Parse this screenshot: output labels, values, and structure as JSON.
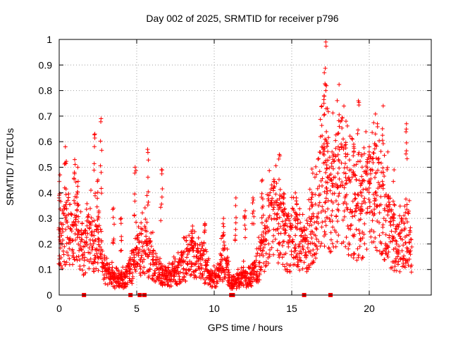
{
  "chart_data": {
    "type": "scatter",
    "title": "Day 002 of 2025, SRMTID for receiver p796",
    "xlabel": "GPS time / hours",
    "ylabel": "SRMTID / TECUs",
    "xlim": [
      0,
      24
    ],
    "ylim": [
      0,
      1
    ],
    "xticks": [
      "0",
      "5",
      "10",
      "15",
      "20"
    ],
    "yticks": [
      "0",
      "0.1",
      "0.2",
      "0.3",
      "0.4",
      "0.5",
      "0.6",
      "0.7",
      "0.8",
      "0.9",
      "1"
    ],
    "grid": true,
    "marker": "+",
    "color": "#ff0000",
    "zero_markers_x": [
      1.6,
      4.6,
      5.2,
      5.5,
      11.1,
      11.2,
      15.8,
      17.5
    ],
    "series": [
      {
        "name": "SRMTID",
        "x": [
          0.0,
          0.1,
          0.2,
          0.3,
          0.4,
          0.5,
          0.6,
          0.7,
          0.8,
          0.9,
          1.0,
          1.1,
          1.2,
          1.3,
          1.4,
          1.5,
          1.6,
          1.7,
          1.8,
          1.9,
          2.0,
          2.1,
          2.2,
          2.3,
          2.4,
          2.5,
          2.6,
          2.7,
          2.8,
          2.9,
          3.0,
          3.1,
          3.2,
          3.3,
          3.4,
          3.5,
          3.6,
          3.7,
          3.8,
          3.9,
          4.0,
          4.1,
          4.2,
          4.3,
          4.4,
          4.5,
          4.6,
          4.7,
          4.8,
          4.9,
          5.0,
          5.1,
          5.2,
          5.3,
          5.4,
          5.5,
          5.6,
          5.7,
          5.8,
          5.9,
          6.0,
          6.1,
          6.2,
          6.3,
          6.4,
          6.5,
          6.6,
          6.7,
          6.8,
          6.9,
          7.0,
          7.1,
          7.2,
          7.3,
          7.4,
          7.5,
          7.6,
          7.7,
          7.8,
          7.9,
          8.0,
          8.1,
          8.2,
          8.3,
          8.4,
          8.5,
          8.6,
          8.7,
          8.8,
          8.9,
          9.0,
          9.1,
          9.2,
          9.3,
          9.4,
          9.5,
          9.6,
          9.7,
          9.8,
          9.9,
          10.0,
          10.1,
          10.2,
          10.3,
          10.4,
          10.5,
          10.6,
          10.7,
          10.8,
          10.9,
          11.0,
          11.1,
          11.2,
          11.3,
          11.4,
          11.5,
          11.6,
          11.7,
          11.8,
          11.9,
          12.0,
          12.1,
          12.2,
          12.3,
          12.4,
          12.5,
          12.6,
          12.7,
          12.8,
          12.9,
          13.0,
          13.1,
          13.2,
          13.3,
          13.4,
          13.5,
          13.6,
          13.7,
          13.8,
          13.9,
          14.0,
          14.1,
          14.2,
          14.3,
          14.4,
          14.5,
          14.6,
          14.7,
          14.8,
          14.9,
          15.0,
          15.1,
          15.2,
          15.3,
          15.4,
          15.5,
          15.6,
          15.7,
          15.8,
          15.9,
          16.0,
          16.1,
          16.2,
          16.3,
          16.4,
          16.5,
          16.6,
          16.7,
          16.8,
          16.9,
          17.0,
          17.1,
          17.2,
          17.3,
          17.4,
          17.5,
          17.6,
          17.7,
          17.8,
          17.9,
          18.0,
          18.1,
          18.2,
          18.3,
          18.4,
          18.5,
          18.6,
          18.7,
          18.8,
          18.9,
          19.0,
          19.1,
          19.2,
          19.3,
          19.4,
          19.5,
          19.6,
          19.7,
          19.8,
          19.9,
          20.0,
          20.1,
          20.2,
          20.3,
          20.4,
          20.5,
          20.6,
          20.7,
          20.8,
          20.9,
          21.0,
          21.1,
          21.2,
          21.3,
          21.4,
          21.5,
          21.6,
          21.7,
          21.8,
          21.9,
          22.0,
          22.1,
          22.2,
          22.3,
          22.4,
          22.5,
          22.6,
          22.7
        ],
        "center": [
          0.18,
          0.2,
          0.22,
          0.24,
          0.26,
          0.28,
          0.26,
          0.24,
          0.22,
          0.22,
          0.24,
          0.25,
          0.22,
          0.2,
          0.18,
          0.16,
          0.17,
          0.19,
          0.21,
          0.22,
          0.22,
          0.2,
          0.18,
          0.17,
          0.18,
          0.2,
          0.18,
          0.15,
          0.12,
          0.1,
          0.09,
          0.08,
          0.08,
          0.07,
          0.07,
          0.06,
          0.06,
          0.07,
          0.07,
          0.06,
          0.06,
          0.06,
          0.06,
          0.07,
          0.08,
          0.08,
          0.09,
          0.1,
          0.12,
          0.14,
          0.15,
          0.16,
          0.16,
          0.17,
          0.18,
          0.18,
          0.17,
          0.16,
          0.15,
          0.14,
          0.13,
          0.12,
          0.11,
          0.1,
          0.09,
          0.08,
          0.08,
          0.07,
          0.07,
          0.07,
          0.07,
          0.07,
          0.07,
          0.08,
          0.08,
          0.08,
          0.08,
          0.09,
          0.1,
          0.11,
          0.12,
          0.12,
          0.12,
          0.12,
          0.13,
          0.14,
          0.14,
          0.14,
          0.13,
          0.12,
          0.12,
          0.12,
          0.12,
          0.11,
          0.1,
          0.09,
          0.08,
          0.07,
          0.07,
          0.06,
          0.06,
          0.06,
          0.07,
          0.08,
          0.1,
          0.12,
          0.13,
          0.12,
          0.1,
          0.08,
          0.06,
          0.05,
          0.05,
          0.05,
          0.05,
          0.06,
          0.06,
          0.07,
          0.07,
          0.07,
          0.06,
          0.06,
          0.06,
          0.06,
          0.07,
          0.08,
          0.09,
          0.1,
          0.11,
          0.12,
          0.14,
          0.16,
          0.18,
          0.2,
          0.22,
          0.24,
          0.26,
          0.27,
          0.28,
          0.28,
          0.27,
          0.26,
          0.25,
          0.24,
          0.23,
          0.22,
          0.21,
          0.2,
          0.2,
          0.2,
          0.21,
          0.22,
          0.22,
          0.21,
          0.2,
          0.19,
          0.18,
          0.18,
          0.18,
          0.18,
          0.2,
          0.22,
          0.24,
          0.26,
          0.28,
          0.3,
          0.33,
          0.36,
          0.38,
          0.4,
          0.42,
          0.42,
          0.41,
          0.4,
          0.38,
          0.37,
          0.36,
          0.38,
          0.4,
          0.42,
          0.44,
          0.45,
          0.44,
          0.42,
          0.4,
          0.38,
          0.36,
          0.35,
          0.34,
          0.33,
          0.32,
          0.31,
          0.3,
          0.3,
          0.3,
          0.31,
          0.32,
          0.33,
          0.34,
          0.35,
          0.36,
          0.37,
          0.38,
          0.38,
          0.38,
          0.37,
          0.36,
          0.35,
          0.34,
          0.32,
          0.3,
          0.28,
          0.26,
          0.24,
          0.22,
          0.2,
          0.19,
          0.18,
          0.18,
          0.18,
          0.19,
          0.2,
          0.2,
          0.21,
          0.22,
          0.22,
          0.21,
          0.2
        ],
        "peaks": [
          [
            0.05,
            0.47
          ],
          [
            0.4,
            0.58
          ],
          [
            1.0,
            0.53
          ],
          [
            1.2,
            0.5
          ],
          [
            2.3,
            0.63
          ],
          [
            2.7,
            0.69
          ],
          [
            2.5,
            0.45
          ],
          [
            3.5,
            0.34
          ],
          [
            4.0,
            0.3
          ],
          [
            4.9,
            0.5
          ],
          [
            5.7,
            0.57
          ],
          [
            6.6,
            0.49
          ],
          [
            8.6,
            0.27
          ],
          [
            9.4,
            0.28
          ],
          [
            10.6,
            0.3
          ],
          [
            11.4,
            0.38
          ],
          [
            12.0,
            0.33
          ],
          [
            12.5,
            0.38
          ],
          [
            13.1,
            0.45
          ],
          [
            14.2,
            0.55
          ],
          [
            14.5,
            0.38
          ],
          [
            15.3,
            0.38
          ],
          [
            16.3,
            0.4
          ],
          [
            17.2,
            0.99
          ],
          [
            17.1,
            0.87
          ],
          [
            17.3,
            0.73
          ],
          [
            17.2,
            0.8
          ],
          [
            17.6,
            0.56
          ],
          [
            18.0,
            0.58
          ],
          [
            18.5,
            0.68
          ],
          [
            19.0,
            0.59
          ],
          [
            19.3,
            0.76
          ],
          [
            19.5,
            0.55
          ],
          [
            20.0,
            0.58
          ],
          [
            20.4,
            0.63
          ],
          [
            20.9,
            0.74
          ],
          [
            21.2,
            0.56
          ],
          [
            21.6,
            0.49
          ],
          [
            22.4,
            0.67
          ]
        ]
      }
    ]
  }
}
